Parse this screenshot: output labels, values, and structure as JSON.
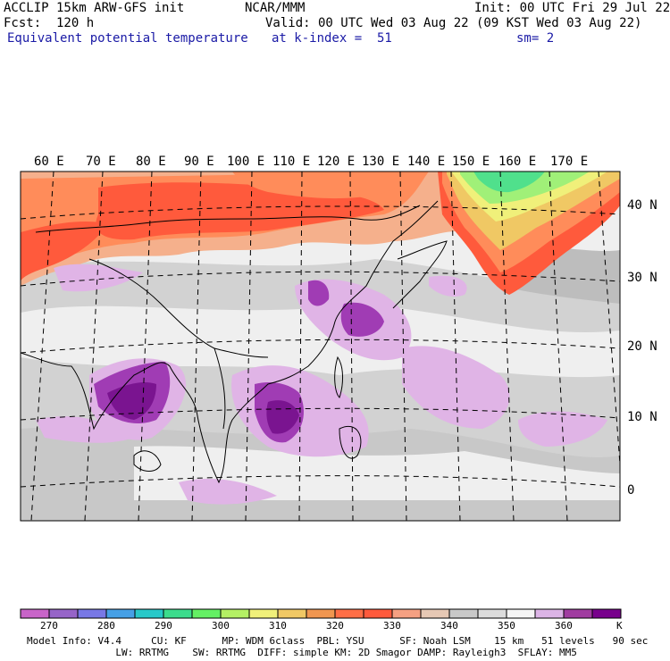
{
  "header": {
    "model_line": "ACCLIP 15km ARW-GFS init",
    "forecast": "Fcst:  120 h",
    "field": "Equivalent potential temperature",
    "org": "NCAR/MMM",
    "valid": "Valid: 00 UTC Wed 03 Aug 22 (09 KST Wed 03 Aug 22)",
    "level": "at k-index =  51",
    "init": "Init: 00 UTC Fri 29 Jul 22",
    "smoothing": "sm= 2"
  },
  "map": {
    "lon_labels": [
      "60 E",
      "70 E",
      "80 E",
      "90 E",
      "100 E",
      "110 E",
      "120 E",
      "130 E",
      "140 E",
      "150 E",
      "160 E",
      "170 E"
    ],
    "lat_labels": [
      "40 N",
      "30 N",
      "20 N",
      "10 N",
      "0"
    ],
    "colors": {
      "very_warm": "#ff5a3c",
      "warm": "#ff8c5a",
      "light_warm": "#f5b08c",
      "neutral_gray": "#b4b4b4",
      "light_gray": "#cdcdcd",
      "near_white": "#efefef",
      "light_purple": "#e0b4e6",
      "purple": "#a03cb4",
      "dark_purple": "#7a1490",
      "green": "#50e08c",
      "light_green": "#a0f078",
      "yellow": "#f0f07a"
    }
  },
  "colorbar": {
    "unit": "K",
    "tick_labels": [
      "270",
      "280",
      "290",
      "300",
      "310",
      "320",
      "330",
      "340",
      "350",
      "360"
    ],
    "colors": [
      "#c864c8",
      "#9664c8",
      "#7878e6",
      "#46a0e6",
      "#28c8c8",
      "#3cdc8c",
      "#64f064",
      "#b4f064",
      "#f0f07a",
      "#f0c864",
      "#f09650",
      "#ff6e46",
      "#ff5a3c",
      "#f5a082",
      "#e6c8b4",
      "#c8c8c8",
      "#dcdcdc",
      "#f5f5f5",
      "#dcb4e6",
      "#a03ca0",
      "#78008c"
    ]
  },
  "footer": {
    "line1": "Model Info: V4.4     CU: KF      MP: WDM 6class  PBL: YSU      SF: Noah LSM    15 km   51 levels   90 sec",
    "line2": "               LW: RRTMG    SW: RRTMG  DIFF: simple KM: 2D Smagor DAMP: Rayleigh3  SFLAY: MM5"
  }
}
